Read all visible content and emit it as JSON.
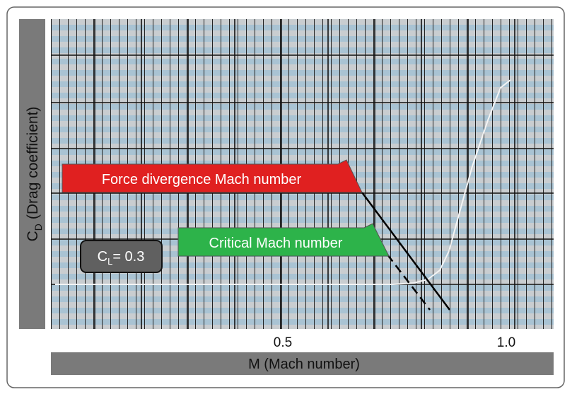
{
  "y_axis_label": {
    "symbol": "C",
    "subscript": "D",
    "text": "(Drag coefficient)"
  },
  "x_axis_label": "M (Mach number)",
  "x_ticks": [
    "0.5",
    "1.0"
  ],
  "callouts": [
    {
      "label": "Force divergence Mach number"
    },
    {
      "label": "Critical Mach number"
    }
  ],
  "lift_coefficient": {
    "symbol": "C",
    "subscript": "L",
    "text": "= 0.3"
  }
}
